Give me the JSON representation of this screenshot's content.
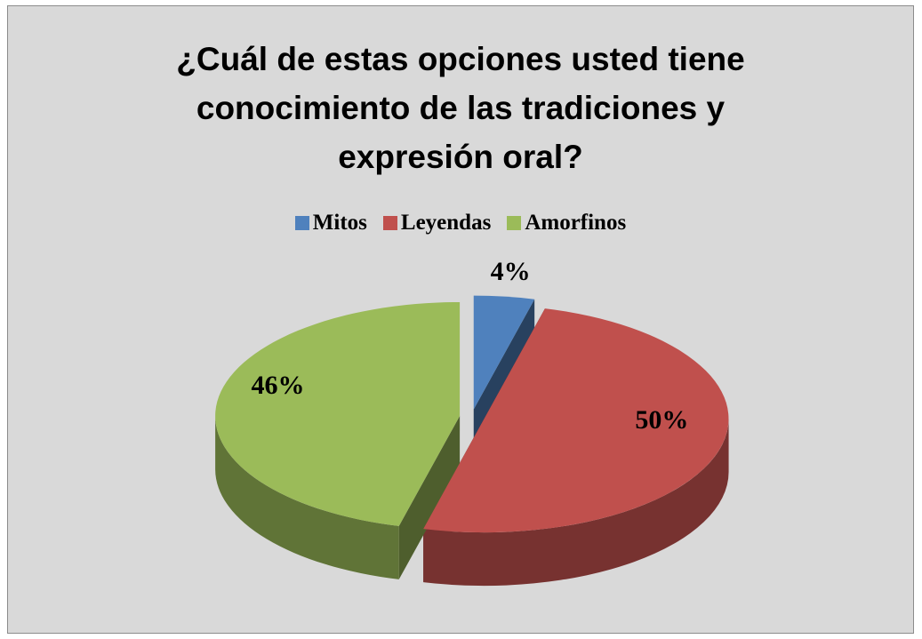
{
  "chart_data": {
    "type": "pie",
    "title": "¿Cuál de estas opciones usted tiene conocimiento de las tradiciones y expresión oral?",
    "categories": [
      "Mitos",
      "Leyendas",
      "Amorfinos"
    ],
    "values": [
      4,
      50,
      46
    ],
    "value_labels": [
      "4%",
      "50%",
      "46%"
    ],
    "colors": [
      "#4f81bd",
      "#c0504d",
      "#9bbb59"
    ],
    "legend": "top"
  }
}
